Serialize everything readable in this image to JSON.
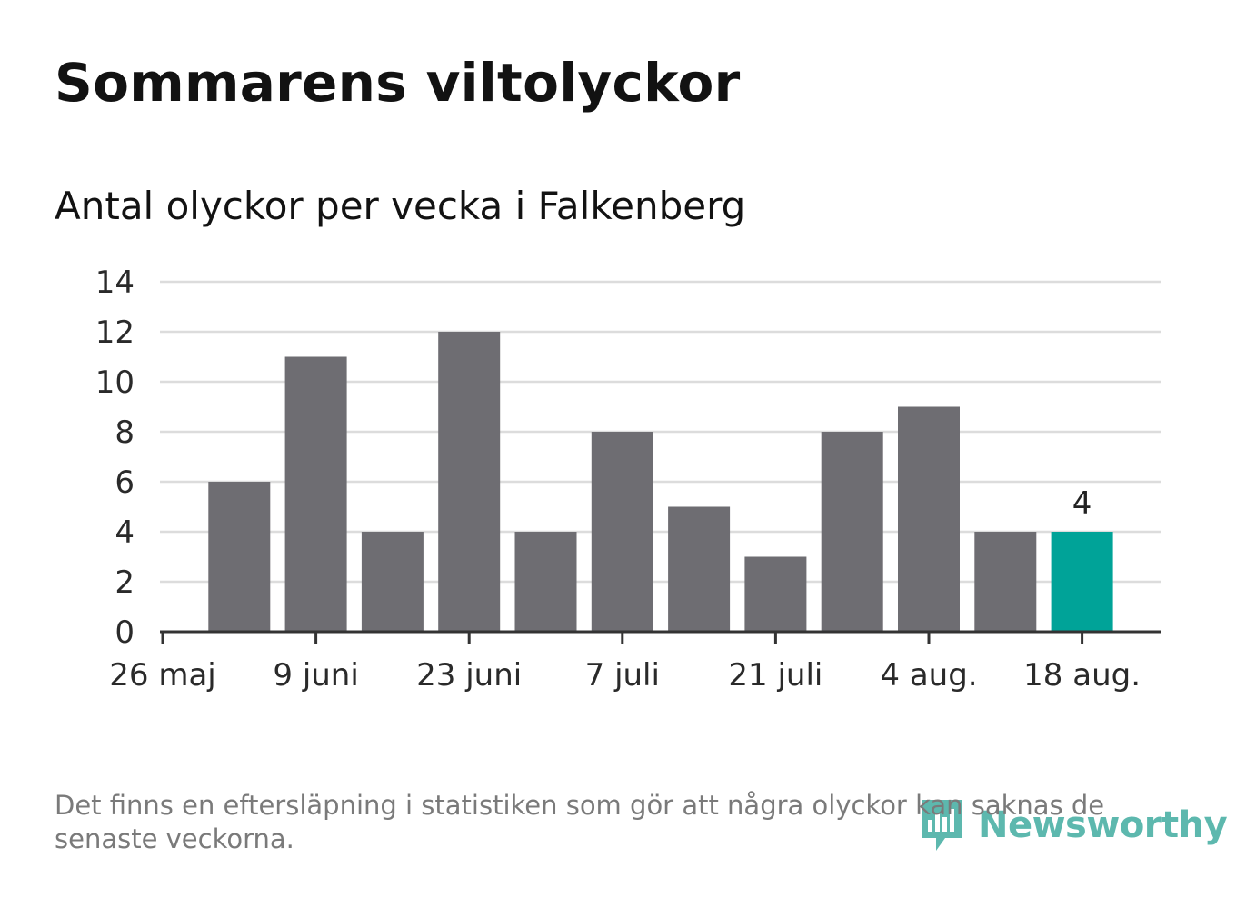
{
  "title": "Sommarens viltolyckor",
  "chart_data": {
    "type": "bar",
    "title": "Sommarens viltolyckor",
    "subtitle": "Antal olyckor per vecka i Falkenberg",
    "xlabel": "",
    "ylabel": "",
    "categories": [
      "2 juni",
      "9 juni",
      "16 juni",
      "23 juni",
      "30 juni",
      "7 juli",
      "14 juli",
      "21 juli",
      "28 juli",
      "4 aug.",
      "11 aug.",
      "18 aug."
    ],
    "series": [
      {
        "values": [
          6,
          11,
          4,
          12,
          4,
          8,
          5,
          3,
          8,
          9,
          4,
          4
        ]
      }
    ],
    "ylim": [
      0,
      14
    ],
    "y_ticks": [
      "0",
      "2",
      "4",
      "6",
      "8",
      "10",
      "12",
      "14"
    ],
    "x_tick_labels": [
      "26 maj",
      "9 juni",
      "23 juni",
      "7 juli",
      "21 juli",
      "4 aug.",
      "18 aug."
    ],
    "highlight_index": 11,
    "highlight_label": "4",
    "grid": true,
    "colors": {
      "bar": "#6e6d72",
      "highlight": "#00a398",
      "grid": "#dcdcdc",
      "axis": "#333333"
    }
  },
  "footnote": "Det finns en eftersläpning i statistiken som gör att några olyckor kan saknas de senaste veckorna.",
  "logo": {
    "text": "Newsworthy",
    "icon": "newsworthy-logo-icon"
  }
}
